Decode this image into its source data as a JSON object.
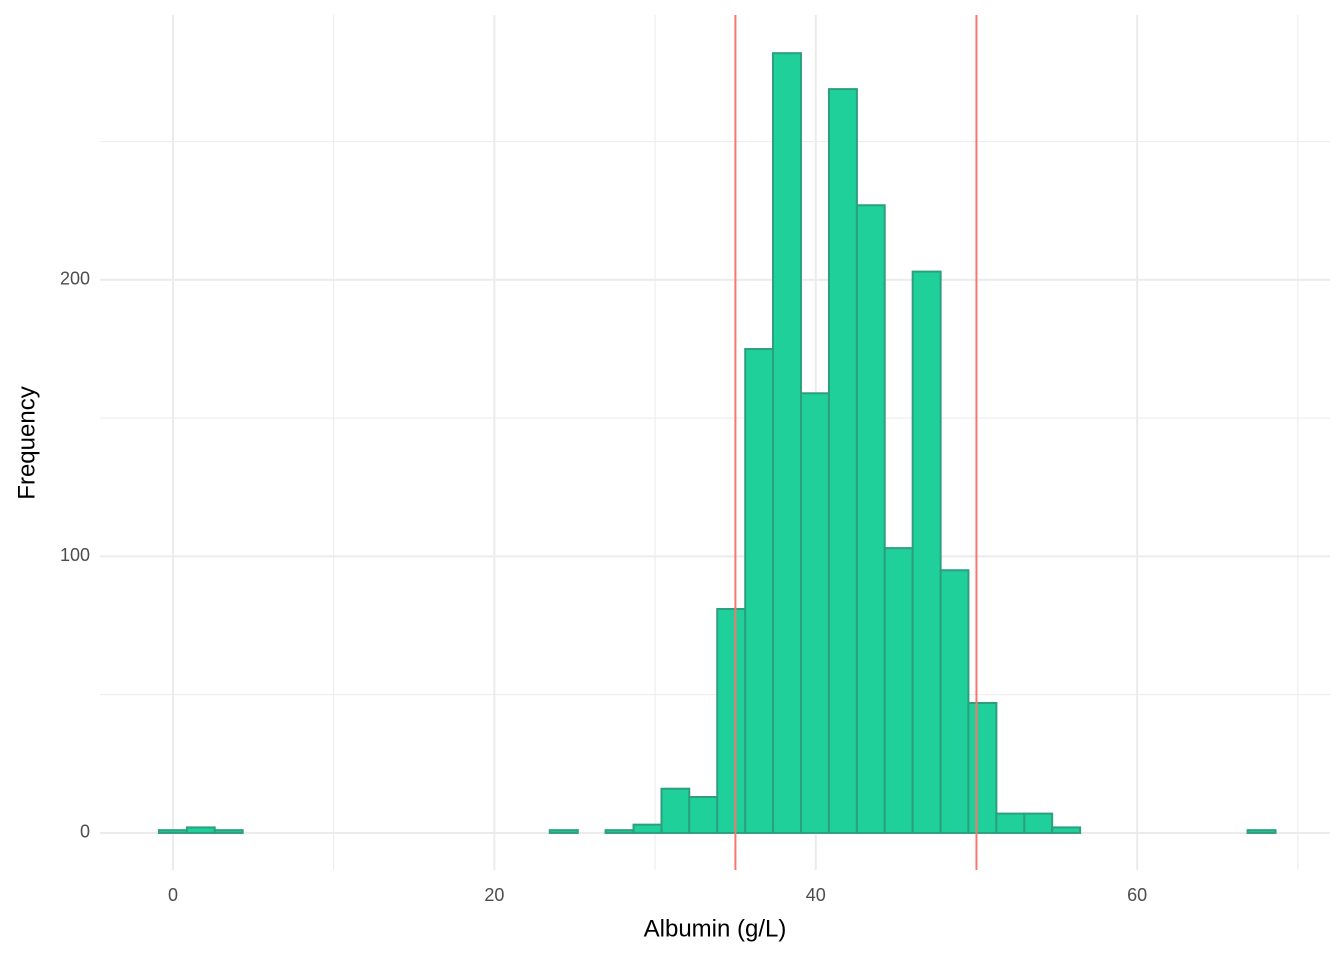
{
  "chart_data": {
    "type": "histogram",
    "x_label": "Albumin (g/L)",
    "y_label": "Frequency",
    "bins": [
      -0.87,
      0.87,
      2.6,
      4.34,
      6.08,
      7.82,
      9.55,
      11.29,
      13.03,
      14.76,
      16.5,
      18.24,
      19.97,
      21.71,
      23.45,
      25.19,
      26.92,
      28.66,
      30.4,
      32.13,
      33.87,
      35.61,
      37.34,
      39.08,
      40.82,
      42.56,
      44.29,
      46.03,
      47.77,
      49.5,
      51.24,
      52.98,
      54.71,
      56.45,
      58.19,
      59.92,
      61.66,
      63.4,
      65.14,
      66.87,
      68.61
    ],
    "values": [
      1,
      2,
      1,
      0,
      0,
      0,
      0,
      0,
      0,
      0,
      0,
      0,
      0,
      0,
      1,
      0,
      1,
      3,
      16,
      13,
      81,
      175,
      282,
      159,
      269,
      227,
      103,
      203,
      95,
      47,
      7,
      7,
      2,
      0,
      0,
      0,
      0,
      0,
      0,
      1
    ],
    "color": "#20d09b",
    "edge_color": "#2b9f7e",
    "vlines": [
      35,
      50
    ],
    "vline_color": "#f8766d",
    "xlim": [
      -4.54,
      72.0
    ],
    "ylim": [
      -13.4,
      295.8
    ],
    "xticks": [
      0,
      20,
      40,
      60
    ],
    "yticks": [
      0,
      100,
      200
    ],
    "x_minor_grid": [
      10,
      30,
      50,
      70
    ],
    "y_minor_grid": [
      50,
      150,
      250
    ],
    "grid": true
  }
}
